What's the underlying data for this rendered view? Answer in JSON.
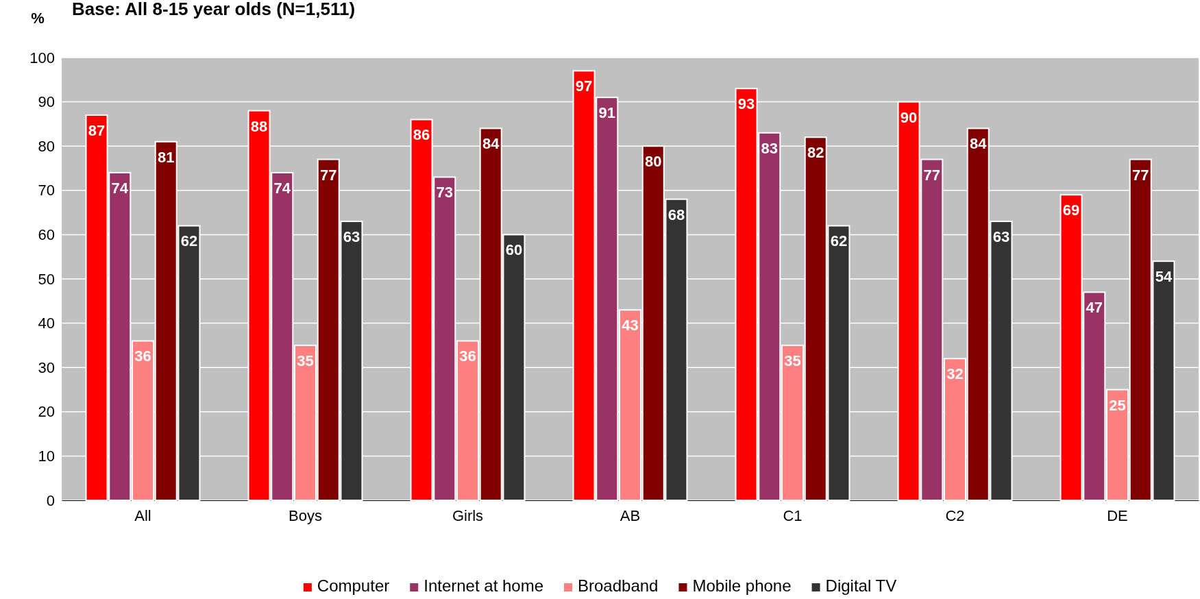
{
  "chart_data": {
    "type": "bar",
    "title": "Base: All 8-15 year olds (N=1,511)",
    "ylabel": "%",
    "categories": [
      "All",
      "Boys",
      "Girls",
      "AB",
      "C1",
      "C2",
      "DE"
    ],
    "series": [
      {
        "name": "Computer",
        "color": "#ff0000",
        "values": [
          87,
          88,
          86,
          97,
          93,
          90,
          69
        ]
      },
      {
        "name": "Internet at home",
        "color": "#993366",
        "values": [
          74,
          74,
          73,
          91,
          83,
          77,
          47
        ]
      },
      {
        "name": "Broadband",
        "color": "#ff8080",
        "values": [
          36,
          35,
          36,
          43,
          35,
          32,
          25
        ]
      },
      {
        "name": "Mobile phone",
        "color": "#800000",
        "values": [
          81,
          77,
          84,
          80,
          82,
          84,
          77
        ]
      },
      {
        "name": "Digital TV",
        "color": "#333333",
        "values": [
          62,
          63,
          60,
          68,
          62,
          63,
          54
        ]
      }
    ],
    "ylim": [
      0,
      100
    ],
    "yticks": [
      0,
      10,
      20,
      30,
      40,
      50,
      60,
      70,
      80,
      90,
      100
    ],
    "grid": "y",
    "legend": "bottom",
    "data_labels": true
  }
}
